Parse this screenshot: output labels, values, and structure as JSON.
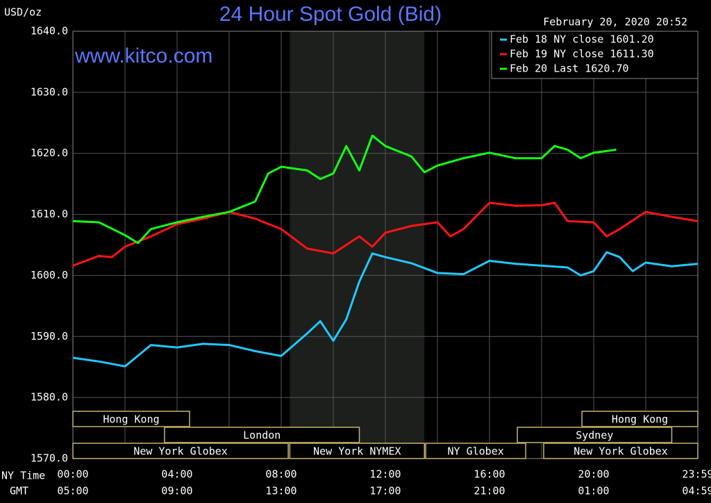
{
  "chart_data": {
    "type": "line",
    "title": "24 Hour Spot Gold (Bid)",
    "subtitle": "February 20, 2020 20:52",
    "watermark": "www.kitco.com",
    "ylabel": "USD/oz",
    "x_row_labels": [
      "NY Time",
      "GMT"
    ],
    "xlim": [
      0,
      24
    ],
    "xticks": [
      {
        "value": 0,
        "label": "00:00"
      },
      {
        "value": 4,
        "label": "04:00"
      },
      {
        "value": 8,
        "label": "08:00"
      },
      {
        "value": 12,
        "label": "12:00"
      },
      {
        "value": 16,
        "label": "16:00"
      },
      {
        "value": 20,
        "label": "20:00"
      },
      {
        "value": 24,
        "label": "23:59"
      }
    ],
    "gmt_labels": [
      "05:00",
      "09:00",
      "13:00",
      "17:00",
      "21:00",
      "01:00",
      "04:59"
    ],
    "xgrid": [
      0,
      2,
      4,
      6,
      8,
      10,
      12,
      14,
      16,
      18,
      20,
      22,
      24
    ],
    "ylim": [
      1570,
      1640
    ],
    "yticks": [
      {
        "value": 1570,
        "label": "1570.0"
      },
      {
        "value": 1580,
        "label": "1580.0"
      },
      {
        "value": 1590,
        "label": "1590.0"
      },
      {
        "value": 1600,
        "label": "1600.0"
      },
      {
        "value": 1610,
        "label": "1610.0"
      },
      {
        "value": 1620,
        "label": "1620.0"
      },
      {
        "value": 1630,
        "label": "1630.0"
      },
      {
        "value": 1640,
        "label": "1640.0"
      }
    ],
    "grid": true,
    "shade": [
      8.33,
      13.5
    ],
    "sessions": [
      [
        {
          "label": "Hong Kong",
          "start": 0,
          "end": 4.48
        },
        {
          "label": "Hong Kong",
          "start": 19.55,
          "end": 24
        }
      ],
      [
        {
          "label": "London",
          "start": 3.52,
          "end": 11.0
        },
        {
          "label": "Sydney",
          "start": 17.07,
          "end": 23.0
        }
      ],
      [
        {
          "label": "New York Globex",
          "start": 0,
          "end": 8.27
        },
        {
          "label": "New York NYMEX",
          "start": 8.33,
          "end": 13.5
        },
        {
          "label": "NY Globex",
          "start": 13.55,
          "end": 17.39
        },
        {
          "label": "New York Globex",
          "start": 18.08,
          "end": 24
        }
      ]
    ],
    "legend": "top-right",
    "series": [
      {
        "name": "Feb 18 NY close 1601.20",
        "color": "#22c8ff",
        "x": [
          0,
          1,
          2,
          3,
          4,
          5,
          6,
          7,
          8,
          9,
          9.5,
          10,
          10.5,
          11,
          11.5,
          12,
          13,
          14,
          15,
          16,
          17,
          18,
          19,
          19.5,
          20,
          20.5,
          21,
          21.5,
          22,
          23,
          24
        ],
        "values": [
          1586.5,
          1585.9,
          1585.1,
          1588.6,
          1588.2,
          1588.8,
          1588.6,
          1587.6,
          1586.8,
          1590.5,
          1592.5,
          1589.3,
          1592.8,
          1599,
          1603.6,
          1603,
          1602,
          1600.4,
          1600.2,
          1602.4,
          1601.9,
          1601.6,
          1601.3,
          1600,
          1600.7,
          1603.8,
          1603,
          1600.7,
          1602.1,
          1601.5,
          1601.9
        ]
      },
      {
        "name": "Feb 19 NY close 1611.30",
        "color": "#ff1414",
        "x": [
          0,
          1,
          1.5,
          2,
          3,
          4,
          5,
          6,
          7,
          8,
          9,
          10,
          11,
          11.5,
          12,
          13,
          14,
          14.5,
          15,
          16,
          17,
          18,
          18.5,
          19,
          20,
          20.5,
          21,
          22,
          23,
          24
        ],
        "values": [
          1601.6,
          1603.2,
          1603,
          1604.7,
          1606.4,
          1608.4,
          1609.3,
          1610.4,
          1609.3,
          1607.6,
          1604.4,
          1603.6,
          1606.4,
          1604.7,
          1607,
          1608.1,
          1608.7,
          1606.4,
          1607.6,
          1611.9,
          1611.4,
          1611.5,
          1611.9,
          1608.9,
          1608.7,
          1606.4,
          1607.6,
          1610.4,
          1609.6,
          1608.9
        ]
      },
      {
        "name": "Feb 20 Last 1620.70",
        "color": "#14ff14",
        "x": [
          0,
          1,
          2,
          2.5,
          3,
          4,
          5,
          6,
          7,
          7.5,
          8,
          9,
          9.5,
          10,
          10.5,
          11,
          11.5,
          12,
          13,
          13.5,
          14,
          15,
          16,
          17,
          18,
          18.5,
          19,
          19.5,
          20,
          20.87
        ],
        "values": [
          1608.9,
          1608.7,
          1606.6,
          1605.3,
          1607.6,
          1608.7,
          1609.6,
          1610.4,
          1612.1,
          1616.7,
          1617.8,
          1617.2,
          1615.8,
          1616.7,
          1621.2,
          1617.2,
          1622.9,
          1621.2,
          1619.5,
          1616.9,
          1618,
          1619.2,
          1620.1,
          1619.2,
          1619.2,
          1621.2,
          1620.6,
          1619.2,
          1620.1,
          1620.6
        ]
      }
    ]
  }
}
